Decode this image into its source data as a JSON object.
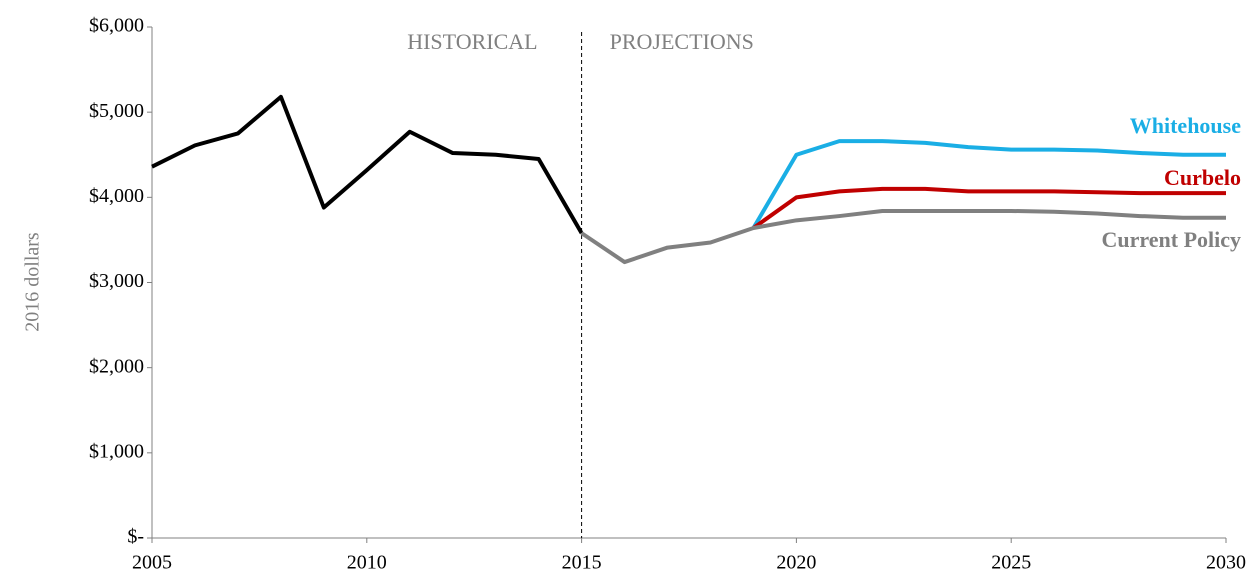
{
  "chart_data": {
    "type": "line",
    "y_label": "2016 dollars",
    "annotations": [
      "HISTORICAL",
      "PROJECTIONS"
    ],
    "divider": 2015,
    "x": [
      2005,
      2006,
      2007,
      2008,
      2009,
      2010,
      2011,
      2012,
      2013,
      2014,
      2015,
      2016,
      2017,
      2018,
      2019,
      2020,
      2021,
      2022,
      2023,
      2024,
      2025,
      2026,
      2027,
      2028,
      2029,
      2030
    ],
    "series": [
      {
        "color": "#000000",
        "values": [
          4360,
          4610,
          4750,
          5180,
          3880,
          4320,
          4770,
          4520,
          4500,
          4450,
          3580,
          null,
          null,
          null,
          null,
          null,
          null,
          null,
          null,
          null,
          null,
          null,
          null,
          null,
          null,
          null
        ]
      },
      {
        "name": "Whitehouse",
        "color": "#1aaee5",
        "values": [
          null,
          null,
          null,
          null,
          null,
          null,
          null,
          null,
          null,
          null,
          null,
          null,
          null,
          null,
          3640,
          4500,
          4660,
          4660,
          4640,
          4590,
          4560,
          4560,
          4550,
          4520,
          4500,
          4500
        ]
      },
      {
        "name": "Curbelo",
        "color": "#c00000",
        "values": [
          null,
          null,
          null,
          null,
          null,
          null,
          null,
          null,
          null,
          null,
          null,
          null,
          null,
          null,
          3640,
          4000,
          4070,
          4100,
          4100,
          4070,
          4070,
          4070,
          4060,
          4050,
          4050,
          4050
        ]
      },
      {
        "name": "Current Policy",
        "color": "#808080",
        "values": [
          null,
          null,
          null,
          null,
          null,
          null,
          null,
          null,
          null,
          null,
          3580,
          3240,
          3410,
          3470,
          3640,
          3730,
          3780,
          3840,
          3840,
          3840,
          3840,
          3830,
          3810,
          3780,
          3760,
          3760
        ]
      }
    ],
    "xlim": [
      2005,
      2030
    ],
    "xticks": [
      2005,
      2010,
      2015,
      2020,
      2025,
      2030
    ],
    "ylim": [
      0,
      6000
    ],
    "yticks": [
      {
        "value": 0,
        "label": "$-"
      },
      {
        "value": 1000,
        "label": "$1,000"
      },
      {
        "value": 2000,
        "label": "$2,000"
      },
      {
        "value": 3000,
        "label": "$3,000"
      },
      {
        "value": 4000,
        "label": "$4,000"
      },
      {
        "value": 5000,
        "label": "$5,000"
      },
      {
        "value": 6000,
        "label": "$6,000"
      }
    ],
    "grid": false
  }
}
